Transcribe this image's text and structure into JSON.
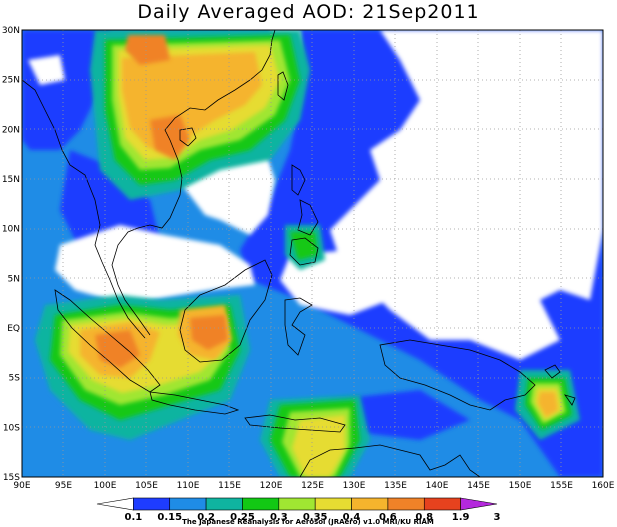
{
  "title": "Daily Averaged AOD: 21Sep2011",
  "map": {
    "lon_range": [
      90,
      160
    ],
    "lat_range": [
      -15,
      30
    ],
    "x_ticks": [
      "90E",
      "95E",
      "100E",
      "105E",
      "110E",
      "115E",
      "120E",
      "125E",
      "130E",
      "135E",
      "140E",
      "145E",
      "150E",
      "155E",
      "160E"
    ],
    "y_ticks": [
      "30N",
      "25N",
      "20N",
      "15N",
      "10N",
      "5N",
      "EQ",
      "5S",
      "10S",
      "15S"
    ],
    "gridlines": true
  },
  "colorbar": {
    "levels": [
      "0.1",
      "0.15",
      "0.2",
      "0.25",
      "0.3",
      "0.35",
      "0.4",
      "0.6",
      "0.8",
      "1.9",
      "3"
    ],
    "colors": [
      "#ffffff",
      "#1e3cff",
      "#1f8ce6",
      "#0fb4a0",
      "#12c814",
      "#a0e632",
      "#e6dc32",
      "#f5b42d",
      "#f08228",
      "#e6421e",
      "#b428dc"
    ]
  },
  "credit": "The Japanese Reanalysis for Aerosol (JRAero) v1.0  MRI/KU RIAM"
}
